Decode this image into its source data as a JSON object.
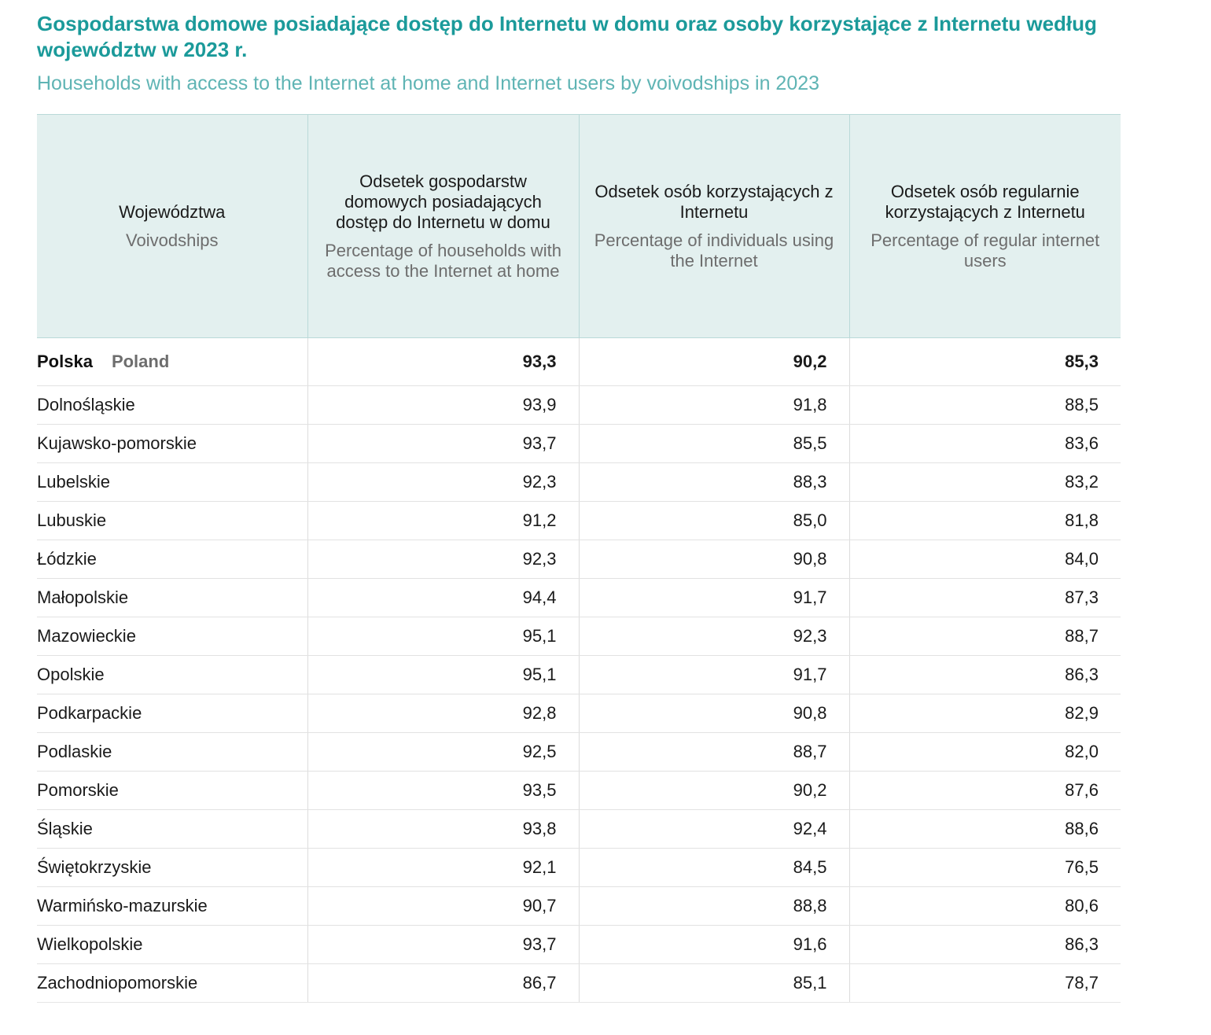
{
  "title_pl": "Gospodarstwa domowe posiadające dostęp do Internetu w domu oraz osoby korzystające z Internetu według województw w 2023 r.",
  "title_en": "Households with access to the Internet at home and Internet users by voivodships in 2023",
  "headers": [
    {
      "pl": "Województwa",
      "en": "Voivodships"
    },
    {
      "pl": "Odsetek gospodarstw domowych posiadających dostęp do Internetu w domu",
      "en": "Percentage of households with access to the Internet at home"
    },
    {
      "pl": "Odsetek osób korzystających z Internetu",
      "en": "Percentage of individuals using the Internet"
    },
    {
      "pl": "Odsetek osób regularnie korzystających z Internetu",
      "en": "Percentage of regular internet users"
    }
  ],
  "total": {
    "name_pl": "Polska",
    "name_en": "Poland",
    "values": [
      "93,3",
      "90,2",
      "85,3"
    ]
  },
  "rows": [
    {
      "name": "Dolnośląskie",
      "values": [
        "93,9",
        "91,8",
        "88,5"
      ]
    },
    {
      "name": "Kujawsko-pomorskie",
      "values": [
        "93,7",
        "85,5",
        "83,6"
      ]
    },
    {
      "name": "Lubelskie",
      "values": [
        "92,3",
        "88,3",
        "83,2"
      ]
    },
    {
      "name": "Lubuskie",
      "values": [
        "91,2",
        "85,0",
        "81,8"
      ]
    },
    {
      "name": "Łódzkie",
      "values": [
        "92,3",
        "90,8",
        "84,0"
      ]
    },
    {
      "name": "Małopolskie",
      "values": [
        "94,4",
        "91,7",
        "87,3"
      ]
    },
    {
      "name": "Mazowieckie",
      "values": [
        "95,1",
        "92,3",
        "88,7"
      ]
    },
    {
      "name": "Opolskie",
      "values": [
        "95,1",
        "91,7",
        "86,3"
      ]
    },
    {
      "name": "Podkarpackie",
      "values": [
        "92,8",
        "90,8",
        "82,9"
      ]
    },
    {
      "name": "Podlaskie",
      "values": [
        "92,5",
        "88,7",
        "82,0"
      ]
    },
    {
      "name": "Pomorskie",
      "values": [
        "93,5",
        "90,2",
        "87,6"
      ]
    },
    {
      "name": "Śląskie",
      "values": [
        "93,8",
        "92,4",
        "88,6"
      ]
    },
    {
      "name": "Świętokrzyskie",
      "values": [
        "92,1",
        "84,5",
        "76,5"
      ]
    },
    {
      "name": "Warmińsko-mazurskie",
      "values": [
        "90,7",
        "88,8",
        "80,6"
      ]
    },
    {
      "name": "Wielkopolskie",
      "values": [
        "93,7",
        "91,6",
        "86,3"
      ]
    },
    {
      "name": "Zachodniopomorskie",
      "values": [
        "86,7",
        "85,1",
        "78,7"
      ]
    }
  ]
}
